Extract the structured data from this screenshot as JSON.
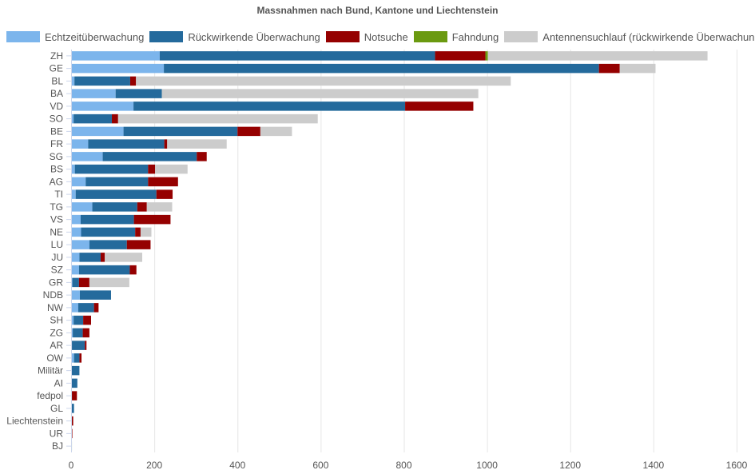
{
  "chart_data": {
    "type": "bar",
    "orientation": "horizontal",
    "stacked": true,
    "title": "Massnahmen nach Bund, Kantone und Liechtenstein",
    "legend_position": "top",
    "grid": true,
    "xlim": [
      0,
      1600
    ],
    "xticks": [
      0,
      200,
      400,
      600,
      800,
      1000,
      1200,
      1400,
      1600
    ],
    "categories": [
      "ZH",
      "GE",
      "BL",
      "BA",
      "VD",
      "SO",
      "BE",
      "FR",
      "SG",
      "BS",
      "AG",
      "TI",
      "TG",
      "VS",
      "NE",
      "LU",
      "JU",
      "SZ",
      "GR",
      "NDB",
      "NW",
      "SH",
      "ZG",
      "AR",
      "OW",
      "Militär",
      "AI",
      "fedpol",
      "GL",
      "Liechtenstein",
      "UR",
      "BJ"
    ],
    "series": [
      {
        "name": "Echtzeitüberwachung",
        "color": "#7cb5ec",
        "values": [
          213,
          223,
          8,
          107,
          150,
          6,
          126,
          41,
          76,
          9,
          35,
          11,
          51,
          23,
          24,
          44,
          20,
          19,
          3,
          21,
          17,
          6,
          4,
          2,
          7,
          1,
          1,
          0,
          1,
          0,
          0,
          0
        ]
      },
      {
        "name": "Rückwirkende Überwachung",
        "color": "#246a9c",
        "values": [
          662,
          1046,
          134,
          111,
          653,
          92,
          274,
          183,
          226,
          176,
          150,
          194,
          108,
          128,
          130,
          90,
          51,
          122,
          16,
          75,
          38,
          23,
          24,
          31,
          13,
          19,
          14,
          2,
          6,
          1,
          1,
          0
        ]
      },
      {
        "name": "Notsuche",
        "color": "#950000",
        "values": [
          121,
          50,
          14,
          0,
          164,
          15,
          55,
          7,
          24,
          17,
          72,
          39,
          23,
          88,
          13,
          57,
          10,
          16,
          25,
          0,
          11,
          19,
          16,
          4,
          5,
          0,
          0,
          12,
          0,
          4,
          2,
          0
        ]
      },
      {
        "name": "Fahndung",
        "color": "#6b9a10",
        "values": [
          6,
          0,
          0,
          0,
          0,
          0,
          0,
          0,
          0,
          0,
          0,
          0,
          0,
          0,
          0,
          0,
          0,
          0,
          0,
          0,
          0,
          0,
          0,
          0,
          0,
          0,
          0,
          0,
          0,
          0,
          0,
          2
        ]
      },
      {
        "name": "Antennensuchlauf (rückwirkende Überwachung)",
        "color": "#cccccc",
        "values": [
          528,
          86,
          901,
          761,
          0,
          480,
          76,
          143,
          0,
          78,
          0,
          0,
          61,
          0,
          26,
          0,
          90,
          0,
          96,
          0,
          0,
          0,
          0,
          0,
          0,
          0,
          0,
          0,
          0,
          0,
          0,
          0
        ]
      }
    ]
  }
}
